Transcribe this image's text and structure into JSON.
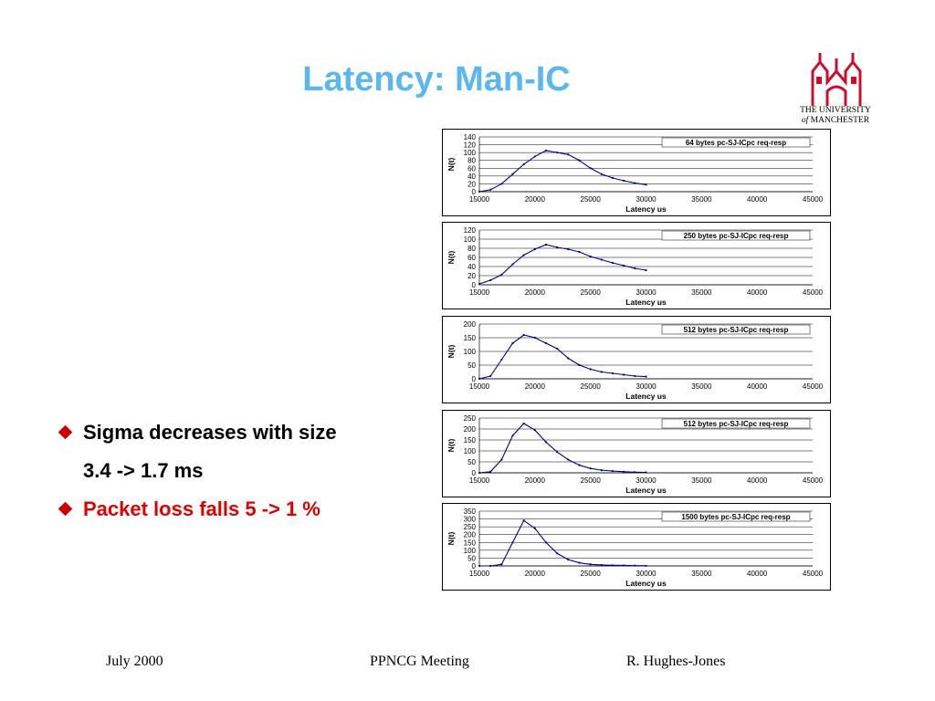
{
  "slide": {
    "title": "Latency: Man-IC",
    "logo": {
      "line1": "THE UNIVERSITY",
      "line2_prefix": "of",
      "line2_rest": " MANCHESTER"
    },
    "bullets": [
      {
        "text": "Sigma decreases with size",
        "color": "#000000"
      },
      {
        "text": "3.4 -> 1.7 ms",
        "color": "#000000",
        "sub": true
      },
      {
        "text": "Packet loss falls 5 -> 1 %",
        "color": "#e00000"
      }
    ],
    "footer": {
      "left": "July 2000",
      "center": "PPNCG Meeting",
      "right": "R. Hughes-Jones"
    }
  },
  "chart_data": [
    {
      "type": "line",
      "title": "64 bytes pc-SJ-ICpc req-resp",
      "xlabel": "Latency us",
      "ylabel": "N(t)",
      "xlim": [
        15000,
        45000
      ],
      "ylim": [
        0,
        140
      ],
      "xticks": [
        15000,
        20000,
        25000,
        30000,
        35000,
        40000,
        45000
      ],
      "yticks": [
        0,
        20,
        40,
        60,
        80,
        100,
        120,
        140
      ],
      "grid": true,
      "series_color": "#00008b",
      "x": [
        15000,
        16000,
        17000,
        18000,
        19000,
        20000,
        21000,
        22000,
        23000,
        24000,
        25000,
        26000,
        27000,
        28000,
        29000,
        30000
      ],
      "y": [
        0,
        5,
        20,
        45,
        70,
        90,
        105,
        100,
        95,
        80,
        60,
        45,
        35,
        28,
        22,
        18
      ]
    },
    {
      "type": "line",
      "title": "250 bytes pc-SJ-ICpc req-resp",
      "xlabel": "Latency us",
      "ylabel": "N(t)",
      "xlim": [
        15000,
        45000
      ],
      "ylim": [
        0,
        120
      ],
      "xticks": [
        15000,
        20000,
        25000,
        30000,
        35000,
        40000,
        45000
      ],
      "yticks": [
        0,
        20,
        40,
        60,
        80,
        100,
        120
      ],
      "grid": true,
      "series_color": "#00008b",
      "x": [
        15000,
        16000,
        17000,
        18000,
        19000,
        20000,
        21000,
        22000,
        23000,
        24000,
        25000,
        26000,
        27000,
        28000,
        29000,
        30000
      ],
      "y": [
        2,
        10,
        22,
        45,
        65,
        78,
        88,
        82,
        78,
        72,
        62,
        55,
        48,
        42,
        36,
        32
      ]
    },
    {
      "type": "line",
      "title": "512 bytes pc-SJ-ICpc req-resp",
      "xlabel": "Latency us",
      "ylabel": "N(t)",
      "xlim": [
        15000,
        45000
      ],
      "ylim": [
        0,
        200
      ],
      "xticks": [
        15000,
        20000,
        25000,
        30000,
        35000,
        40000,
        45000
      ],
      "yticks": [
        0,
        50,
        100,
        150,
        200
      ],
      "grid": true,
      "series_color": "#00008b",
      "x": [
        15000,
        16000,
        17000,
        18000,
        19000,
        20000,
        21000,
        22000,
        23000,
        24000,
        25000,
        26000,
        27000,
        28000,
        29000,
        30000
      ],
      "y": [
        0,
        10,
        70,
        130,
        160,
        150,
        130,
        110,
        75,
        50,
        35,
        25,
        20,
        15,
        10,
        8
      ]
    },
    {
      "type": "line",
      "title": "512 bytes pc-SJ-ICpc req-resp",
      "xlabel": "Latency us",
      "ylabel": "N(t)",
      "xlim": [
        15000,
        45000
      ],
      "ylim": [
        0,
        250
      ],
      "xticks": [
        15000,
        20000,
        25000,
        30000,
        35000,
        40000,
        45000
      ],
      "yticks": [
        0,
        50,
        100,
        150,
        200,
        250
      ],
      "grid": true,
      "series_color": "#00008b",
      "x": [
        15000,
        16000,
        17000,
        18000,
        19000,
        20000,
        21000,
        22000,
        23000,
        24000,
        25000,
        26000,
        27000,
        28000,
        29000,
        30000
      ],
      "y": [
        0,
        5,
        60,
        170,
        225,
        195,
        140,
        95,
        60,
        35,
        20,
        12,
        8,
        5,
        3,
        2
      ]
    },
    {
      "type": "line",
      "title": "1500 bytes pc-SJ-ICpc req-resp",
      "xlabel": "Latency us",
      "ylabel": "N(t)",
      "xlim": [
        15000,
        45000
      ],
      "ylim": [
        0,
        350
      ],
      "xticks": [
        15000,
        20000,
        25000,
        30000,
        35000,
        40000,
        45000
      ],
      "yticks": [
        0,
        50,
        100,
        150,
        200,
        250,
        300,
        350
      ],
      "grid": true,
      "series_color": "#00008b",
      "x": [
        15000,
        16000,
        17000,
        18000,
        19000,
        20000,
        21000,
        22000,
        23000,
        24000,
        25000,
        26000,
        27000,
        28000,
        29000,
        30000
      ],
      "y": [
        0,
        0,
        10,
        150,
        290,
        240,
        150,
        80,
        40,
        20,
        10,
        6,
        4,
        3,
        2,
        1
      ]
    }
  ]
}
